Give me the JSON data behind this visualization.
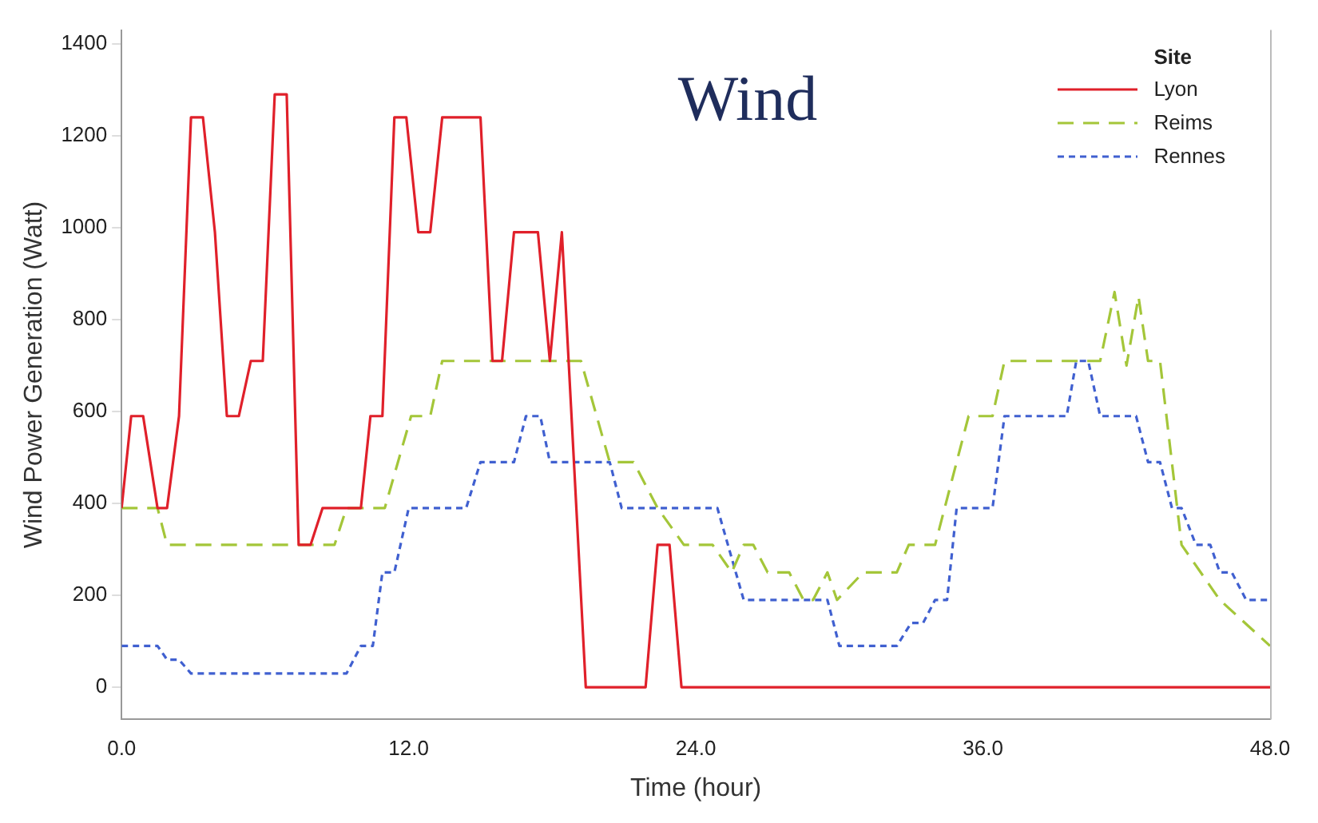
{
  "chart_data": {
    "type": "line",
    "title": "Wind",
    "xlabel": "Time (hour)",
    "ylabel": "Wind Power Generation (Watt)",
    "legend_title": "Site",
    "legend": "top right",
    "grid": false,
    "marker": "none",
    "xlim": [
      0,
      48
    ],
    "xticks": [
      {
        "value": 0,
        "label": "0.0"
      },
      {
        "value": 12,
        "label": "12.0"
      },
      {
        "value": 24,
        "label": "24.0"
      },
      {
        "value": 36,
        "label": "36.0"
      },
      {
        "value": 48,
        "label": "48.0"
      }
    ],
    "ylim": [
      -70,
      1430
    ],
    "yticks": [
      0,
      200,
      400,
      600,
      800,
      1000,
      1200,
      1400
    ],
    "series": [
      {
        "name": "Lyon",
        "color": "#e0202a",
        "line_style": "solid",
        "x": [
          0,
          0.4,
          0.9,
          1.5,
          1.9,
          2.4,
          2.9,
          3.4,
          3.9,
          4.4,
          4.9,
          5.4,
          5.9,
          6.4,
          6.9,
          7.4,
          7.9,
          8.4,
          10,
          10.4,
          10.9,
          11.4,
          11.9,
          12.4,
          12.9,
          13.4,
          15,
          15.5,
          15.9,
          16.4,
          17.4,
          17.9,
          18.4,
          19.4,
          21.9,
          22.4,
          22.9,
          23.4,
          48
        ],
        "values": [
          390,
          590,
          590,
          390,
          390,
          590,
          1240,
          1240,
          990,
          590,
          590,
          710,
          710,
          1290,
          1290,
          310,
          310,
          390,
          390,
          590,
          590,
          1240,
          1240,
          990,
          990,
          1240,
          1240,
          710,
          710,
          990,
          990,
          710,
          990,
          0,
          0,
          310,
          310,
          0,
          0
        ]
      },
      {
        "name": "Reims",
        "color": "#a4c639",
        "line_style": "dashed",
        "x": [
          0,
          1.5,
          1.9,
          8.9,
          9.4,
          11,
          12.1,
          12.9,
          13.4,
          19.2,
          20.4,
          21.4,
          22.4,
          23.5,
          24.7,
          25.5,
          26,
          26.4,
          27,
          27.9,
          28.5,
          28.9,
          29.5,
          29.9,
          31,
          32.4,
          32.9,
          34,
          35.4,
          36.4,
          36.9,
          40.9,
          41.5,
          42,
          42.5,
          42.9,
          43.4,
          44.3,
          45.9,
          48
        ],
        "values": [
          390,
          390,
          310,
          310,
          390,
          390,
          590,
          590,
          710,
          710,
          490,
          490,
          390,
          310,
          310,
          250,
          310,
          310,
          250,
          250,
          190,
          190,
          250,
          190,
          250,
          250,
          310,
          310,
          590,
          590,
          710,
          710,
          860,
          700,
          850,
          710,
          710,
          310,
          190,
          90
        ]
      },
      {
        "name": "Rennes",
        "color": "#4060d0",
        "line_style": "dotted",
        "x": [
          0,
          1.5,
          1.9,
          2.4,
          2.9,
          9.4,
          10,
          10.5,
          10.9,
          11.4,
          12,
          14.4,
          15,
          16.4,
          16.9,
          17.5,
          17.9,
          20.4,
          20.9,
          24.9,
          26,
          29.5,
          30,
          32.4,
          33,
          33.5,
          34,
          34.5,
          34.9,
          36.4,
          36.9,
          39.5,
          39.9,
          40.4,
          40.9,
          42.4,
          42.9,
          43.4,
          43.9,
          44.3,
          44.9,
          45.5,
          45.9,
          46.4,
          47,
          48
        ],
        "values": [
          90,
          90,
          60,
          60,
          30,
          30,
          90,
          90,
          250,
          250,
          390,
          390,
          490,
          490,
          590,
          590,
          490,
          490,
          390,
          390,
          190,
          190,
          90,
          90,
          140,
          140,
          190,
          190,
          390,
          390,
          590,
          590,
          710,
          710,
          590,
          590,
          490,
          490,
          390,
          390,
          310,
          310,
          250,
          250,
          190,
          190
        ]
      }
    ]
  }
}
